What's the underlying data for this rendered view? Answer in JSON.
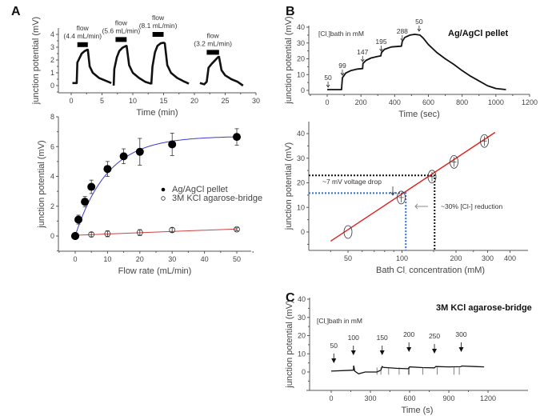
{
  "figure": {
    "panel_labels": [
      "A",
      "B",
      "C"
    ]
  },
  "chart_data": [
    {
      "id": "A-top",
      "type": "line",
      "title": "",
      "xlabel": "Time (min)",
      "ylabel": "junction potential (mV)",
      "xlim": [
        0,
        30
      ],
      "ylim": [
        -0.5,
        4.5
      ],
      "xticks": [
        0,
        5,
        10,
        15,
        20,
        25,
        30
      ],
      "yticks": [
        0,
        1,
        2,
        3,
        4
      ],
      "annotations": [
        {
          "label": "flow",
          "sub": "(4.4 mL/min)",
          "x_start": 1,
          "x_end": 2.7,
          "y": 3.2
        },
        {
          "label": "flow",
          "sub": "(5.6 mL/min)",
          "x_start": 7.2,
          "x_end": 9.0,
          "y": 3.6
        },
        {
          "label": "flow",
          "sub": "(8.1 mL/min)",
          "x_start": 13.2,
          "x_end": 15.0,
          "y": 4.0
        },
        {
          "label": "flow",
          "sub": "(3.2 mL/min)",
          "x_start": 22.0,
          "x_end": 24.0,
          "y": 2.6
        }
      ],
      "series": [
        {
          "name": "trace1",
          "x": [
            0.2,
            0.9,
            1.0,
            1.3,
            1.7,
            2.2,
            2.6,
            2.7,
            3.0,
            3.5,
            4.5,
            5.5,
            6.5
          ],
          "y": [
            0.2,
            0.2,
            1.8,
            2.1,
            2.5,
            2.7,
            2.8,
            2.8,
            1.5,
            1.0,
            0.6,
            0.4,
            0.2
          ]
        },
        {
          "name": "trace2",
          "x": [
            6.9,
            7.0,
            7.4,
            7.8,
            8.3,
            8.9,
            9.0,
            9.4,
            10.0,
            11.0,
            12.0,
            13.0
          ],
          "y": [
            0.0,
            1.3,
            2.2,
            2.7,
            2.95,
            3.1,
            3.1,
            1.6,
            1.0,
            0.6,
            0.3,
            0.15
          ]
        },
        {
          "name": "trace3",
          "x": [
            13.0,
            13.2,
            13.6,
            14.0,
            14.5,
            15.0,
            15.2,
            15.6,
            16.2,
            17.2,
            18.2,
            19.1
          ],
          "y": [
            0.1,
            1.5,
            2.6,
            3.1,
            3.3,
            3.35,
            3.3,
            1.6,
            1.0,
            0.6,
            0.35,
            0.15
          ]
        },
        {
          "name": "trace4",
          "x": [
            20.9,
            21.6,
            22.0,
            22.3,
            22.8,
            23.3,
            23.9,
            24.0,
            24.4,
            25.0,
            26.0,
            27.0,
            27.9
          ],
          "y": [
            0.2,
            0.1,
            0.3,
            1.4,
            1.7,
            1.95,
            2.25,
            2.25,
            1.2,
            0.8,
            0.5,
            0.3,
            0.0
          ]
        }
      ]
    },
    {
      "id": "A-bottom",
      "type": "scatter",
      "xlabel": "Flow rate (mL/min)",
      "ylabel": "junction potential (mV)",
      "xlim": [
        -5,
        55
      ],
      "ylim": [
        -1,
        8
      ],
      "xticks": [
        0,
        10,
        20,
        30,
        40,
        50
      ],
      "yticks": [
        0,
        2,
        4,
        6,
        8
      ],
      "legend": {
        "position": "center-right",
        "entries": [
          "Ag/AgCl pellet",
          "3M KCl agarose-bridge"
        ]
      },
      "series": [
        {
          "name": "Ag/AgCl pellet",
          "marker": "filled-circle",
          "fit_color": "#3a3ad0",
          "x": [
            0,
            1,
            3,
            5,
            10,
            15,
            20,
            30,
            50
          ],
          "y": [
            0,
            1.1,
            2.3,
            3.3,
            4.5,
            5.35,
            5.65,
            6.15,
            6.65
          ],
          "err": [
            0,
            0.3,
            0.35,
            0.45,
            0.5,
            0.5,
            0.9,
            0.75,
            0.55
          ]
        },
        {
          "name": "3M KCl agarose-bridge",
          "marker": "open-circle",
          "fit_color": "#d04040",
          "x": [
            5,
            10,
            20,
            30,
            50
          ],
          "y": [
            0.1,
            0.15,
            0.23,
            0.4,
            0.45
          ],
          "err": [
            0.15,
            0.2,
            0.2,
            0.15,
            0.1
          ]
        }
      ],
      "fit": {
        "type": "exponential",
        "plateau": 6.7,
        "rate": 0.1
      }
    },
    {
      "id": "B-top",
      "type": "line",
      "title": "Ag/AgCl pellet",
      "subtitle": "[Cl-]bath in mM",
      "xlabel": "Time (sec)",
      "ylabel": "junction potential (mV)",
      "xlim": [
        -100,
        1200
      ],
      "ylim": [
        -3,
        40
      ],
      "xticks": [
        0,
        200,
        400,
        600,
        800,
        1000,
        1200
      ],
      "yticks": [
        0,
        10,
        20,
        30,
        40
      ],
      "step_labels": [
        {
          "label": "50",
          "x": 5
        },
        {
          "label": "99",
          "x": 90
        },
        {
          "label": "147",
          "x": 210
        },
        {
          "label": "195",
          "x": 320
        },
        {
          "label": "288",
          "x": 445
        },
        {
          "label": "50",
          "x": 545
        }
      ],
      "series": [
        {
          "name": "trace",
          "x": [
            0,
            85,
            90,
            110,
            140,
            180,
            210,
            212,
            230,
            260,
            300,
            318,
            322,
            340,
            380,
            440,
            445,
            460,
            490,
            520,
            550,
            570,
            600,
            650,
            700,
            750,
            800,
            850,
            900,
            950,
            1000,
            1060
          ],
          "y": [
            0.5,
            0.5,
            8,
            11,
            12.5,
            13.5,
            13.8,
            17,
            19,
            20.5,
            21.5,
            21.8,
            24,
            26,
            27.5,
            28,
            31,
            33.5,
            35,
            35.5,
            35,
            33,
            29,
            24,
            20,
            16.5,
            12.5,
            9,
            6,
            3,
            1.2,
            0.5
          ]
        }
      ]
    },
    {
      "id": "B-bottom",
      "type": "scatter",
      "xlabel": "Bath Cl- concentration (mM)",
      "ylabel": "junction potential (mV)",
      "xscale": "log",
      "xlim": [
        30,
        450
      ],
      "ylim": [
        -8,
        45
      ],
      "xticks": [
        50,
        100,
        200,
        300,
        400
      ],
      "yticks": [
        0,
        10,
        20,
        30,
        40
      ],
      "series": [
        {
          "name": "measured",
          "marker": "open-ellipse",
          "x": [
            50,
            99,
            147,
            195,
            288
          ],
          "y": [
            0,
            14,
            22.5,
            28.5,
            37
          ]
        }
      ],
      "fit": {
        "type": "log-linear",
        "x": [
          40,
          330
        ],
        "y": [
          -3.7,
          40.5
        ],
        "color": "#e02020"
      },
      "annotations": [
        {
          "text": "~7 mV voltage drop",
          "type": "label"
        },
        {
          "text": "~30% [Cl-] reduction",
          "type": "label"
        },
        {
          "type": "dotted-guide",
          "color": "#111111",
          "x": 147,
          "y": 23
        },
        {
          "type": "dotted-guide",
          "color": "#2a6fd6",
          "x": 105,
          "y": 15.8
        }
      ]
    },
    {
      "id": "C",
      "type": "line",
      "title": "3M KCl agarose-bridge",
      "subtitle": "[Cl-]bath in mM",
      "xlabel": "Time (s)",
      "ylabel": "junction potential (mV)",
      "xlim": [
        -100,
        1320
      ],
      "ylim": [
        -10,
        40
      ],
      "xticks": [
        0,
        300,
        600,
        900,
        1200
      ],
      "yticks": [
        0,
        10,
        20,
        30,
        40
      ],
      "step_labels": [
        {
          "label": "50",
          "x": 20
        },
        {
          "label": "100",
          "x": 170
        },
        {
          "label": "150",
          "x": 390
        },
        {
          "label": "200",
          "x": 595
        },
        {
          "label": "250",
          "x": 790
        },
        {
          "label": "300",
          "x": 995
        }
      ],
      "series": [
        {
          "name": "trace",
          "x": [
            0,
            170,
            172,
            180,
            210,
            260,
            350,
            380,
            390,
            400,
            500,
            590,
            600,
            700,
            790,
            800,
            900,
            990,
            1000,
            1100,
            1170
          ],
          "y": [
            0.5,
            1,
            3.5,
            0.5,
            -1,
            0,
            0,
            1,
            3,
            2.5,
            2,
            1.8,
            2.8,
            2.4,
            2.3,
            3,
            2.8,
            2.9,
            3.3,
            3,
            2.8
          ]
        }
      ]
    }
  ]
}
